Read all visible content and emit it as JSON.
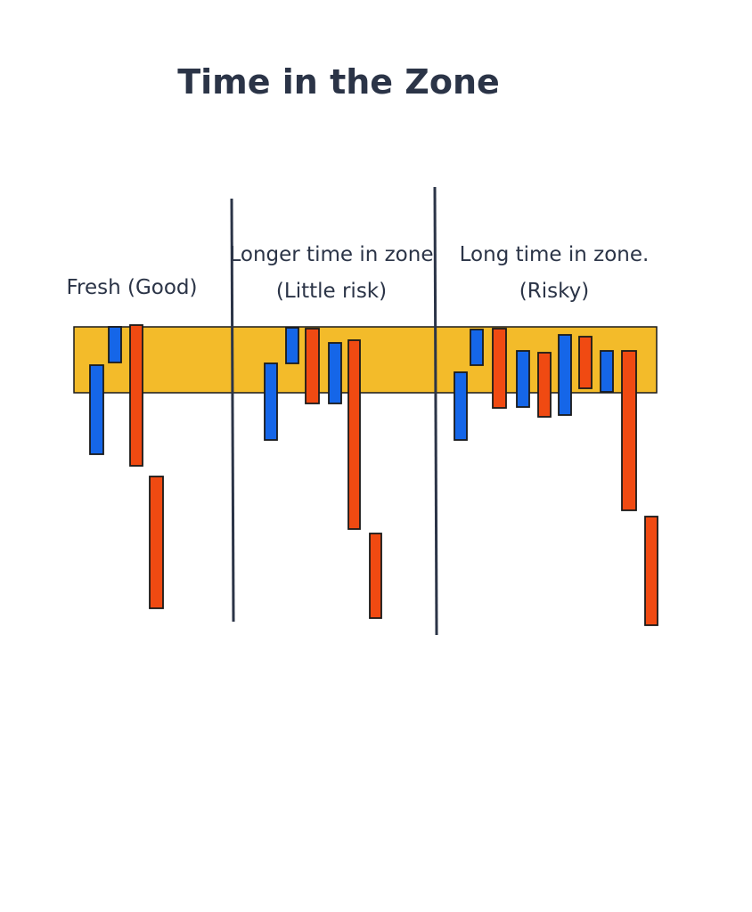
{
  "title": "Time in the Zone",
  "colors": {
    "zone": "#f3bb2a",
    "bullish": "#1566e8",
    "bearish": "#f04a12",
    "divider": "#2b3447",
    "outline": "#1a1a1a",
    "text": "#2b3447"
  },
  "sections": [
    {
      "id": "fresh",
      "label_lines": [
        "Fresh (Good)"
      ]
    },
    {
      "id": "longer",
      "label_lines": [
        "Longer time in zone",
        "(Little risk)"
      ]
    },
    {
      "id": "long",
      "label_lines": [
        "Long time in zone.",
        "(Risky)"
      ]
    }
  ],
  "candles": [
    {
      "section": "fresh",
      "kind": "bullish"
    },
    {
      "section": "fresh",
      "kind": "bullish"
    },
    {
      "section": "fresh",
      "kind": "bearish"
    },
    {
      "section": "fresh",
      "kind": "bearish"
    },
    {
      "section": "longer",
      "kind": "bullish"
    },
    {
      "section": "longer",
      "kind": "bullish"
    },
    {
      "section": "longer",
      "kind": "bearish"
    },
    {
      "section": "longer",
      "kind": "bullish"
    },
    {
      "section": "longer",
      "kind": "bearish"
    },
    {
      "section": "longer",
      "kind": "bearish"
    },
    {
      "section": "long",
      "kind": "bullish"
    },
    {
      "section": "long",
      "kind": "bullish"
    },
    {
      "section": "long",
      "kind": "bearish"
    },
    {
      "section": "long",
      "kind": "bullish"
    },
    {
      "section": "long",
      "kind": "bearish"
    },
    {
      "section": "long",
      "kind": "bullish"
    },
    {
      "section": "long",
      "kind": "bearish"
    },
    {
      "section": "long",
      "kind": "bullish"
    },
    {
      "section": "long",
      "kind": "bearish"
    },
    {
      "section": "long",
      "kind": "bearish"
    }
  ]
}
